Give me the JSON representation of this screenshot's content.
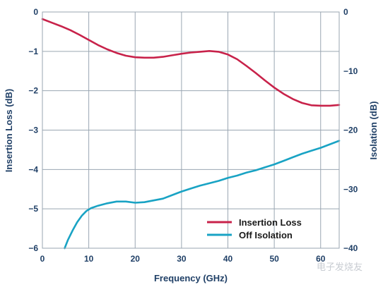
{
  "chart_data": {
    "type": "line",
    "xlabel": "Frequency (GHz)",
    "ylabel_left": "Insertion Loss (dB)",
    "ylabel_right": "Isolation (dB)",
    "xlim": [
      0,
      64
    ],
    "ylim_left": [
      -6,
      0
    ],
    "ylim_right": [
      -40,
      0
    ],
    "x_ticks": [
      0,
      10,
      20,
      30,
      40,
      50,
      60
    ],
    "y_ticks_left": [
      0,
      -1,
      -2,
      -3,
      -4,
      -5,
      -6
    ],
    "y_ticks_right": [
      0,
      -10,
      -20,
      -30,
      -40
    ],
    "x_tick_labels": [
      "0",
      "10",
      "20",
      "30",
      "40",
      "50",
      "60"
    ],
    "y_tick_labels_left": [
      "0",
      "−1",
      "−2",
      "−3",
      "−4",
      "−5",
      "−6"
    ],
    "y_tick_labels_right": [
      "0",
      "−10",
      "−20",
      "−30",
      "−40"
    ],
    "grid": true,
    "legend_position": "bottom-right",
    "series": [
      {
        "name": "Insertion Loss",
        "axis": "left",
        "color": "#c8224a",
        "x": [
          0,
          2,
          4,
          6,
          8,
          10,
          12,
          14,
          16,
          18,
          20,
          22,
          24,
          26,
          28,
          30,
          32,
          34,
          36,
          38,
          40,
          42,
          44,
          46,
          48,
          50,
          52,
          54,
          56,
          58,
          60,
          62,
          64
        ],
        "values": [
          -0.18,
          -0.27,
          -0.36,
          -0.46,
          -0.58,
          -0.71,
          -0.84,
          -0.95,
          -1.04,
          -1.11,
          -1.15,
          -1.16,
          -1.16,
          -1.14,
          -1.1,
          -1.06,
          -1.03,
          -1.01,
          -0.99,
          -1.01,
          -1.08,
          -1.2,
          -1.37,
          -1.55,
          -1.74,
          -1.92,
          -2.08,
          -2.21,
          -2.31,
          -2.37,
          -2.38,
          -2.38,
          -2.36
        ]
      },
      {
        "name": "Off Isolation",
        "axis": "right",
        "color": "#19a3c4",
        "x": [
          4.8,
          5.5,
          6.5,
          7.5,
          8.5,
          9.5,
          10.5,
          12,
          14,
          16,
          18,
          20,
          22,
          24,
          26,
          28,
          30,
          32,
          34,
          36,
          38,
          40,
          42,
          44,
          46,
          48,
          50,
          52,
          54,
          56,
          58,
          60,
          62,
          64
        ],
        "values": [
          -40,
          -38.6,
          -37.0,
          -35.6,
          -34.5,
          -33.7,
          -33.2,
          -32.8,
          -32.4,
          -32.1,
          -32.1,
          -32.3,
          -32.2,
          -31.9,
          -31.6,
          -31.0,
          -30.4,
          -29.9,
          -29.4,
          -29.0,
          -28.6,
          -28.1,
          -27.7,
          -27.2,
          -26.8,
          -26.3,
          -25.8,
          -25.2,
          -24.6,
          -24.0,
          -23.5,
          -23.0,
          -22.4,
          -21.8
        ]
      }
    ]
  },
  "watermark": "电子发烧友"
}
